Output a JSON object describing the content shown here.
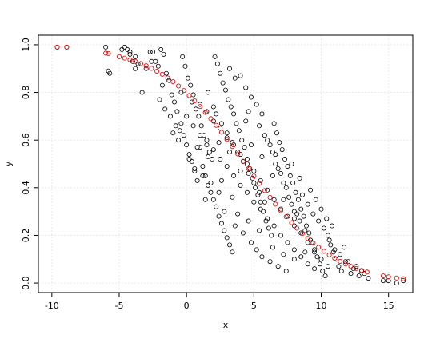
{
  "chart_data": {
    "type": "scatter",
    "title": "",
    "xlabel": "x",
    "ylabel": "y",
    "xlim": [
      -11.0,
      16.8
    ],
    "ylim": [
      -0.04,
      1.04
    ],
    "xticks": [
      -10,
      -5,
      0,
      5,
      10,
      15
    ],
    "yticks": [
      0.0,
      0.2,
      0.4,
      0.6,
      0.8,
      1.0
    ],
    "x_tick_labels": [
      "-10",
      "-5",
      "0",
      "5",
      "10",
      "15"
    ],
    "y_tick_labels": [
      "0.0",
      "0.2",
      "0.4",
      "0.6",
      "0.8",
      "1.0"
    ],
    "grid": true,
    "colors": {
      "observed": "#000000",
      "fitted": "#e01010",
      "grid": "#e6e6e6",
      "frame": "#000000"
    },
    "series": [
      {
        "marker": "open-circle",
        "color": "#000000",
        "points": [
          [
            -9.6,
            0.99
          ],
          [
            -8.9,
            0.99
          ],
          [
            -6.0,
            0.99
          ],
          [
            -5.8,
            0.89
          ],
          [
            -5.7,
            0.88
          ],
          [
            -4.8,
            0.98
          ],
          [
            -4.6,
            0.99
          ],
          [
            -4.4,
            0.98
          ],
          [
            -4.2,
            0.97
          ],
          [
            -4.0,
            0.93
          ],
          [
            -3.8,
            0.95
          ],
          [
            -3.6,
            0.92
          ],
          [
            -3.3,
            0.8
          ],
          [
            -3.0,
            0.9
          ],
          [
            -2.7,
            0.97
          ],
          [
            -2.5,
            0.97
          ],
          [
            -2.3,
            0.93
          ],
          [
            -2.1,
            0.91
          ],
          [
            -1.9,
            0.98
          ],
          [
            -1.7,
            0.96
          ],
          [
            -1.5,
            0.88
          ],
          [
            -1.3,
            0.85
          ],
          [
            -1.1,
            0.79
          ],
          [
            -0.9,
            0.76
          ],
          [
            -0.7,
            0.72
          ],
          [
            -0.5,
            0.64
          ],
          [
            -0.3,
            0.95
          ],
          [
            -0.1,
            0.91
          ],
          [
            0.1,
            0.86
          ],
          [
            0.3,
            0.83
          ],
          [
            0.5,
            0.79
          ],
          [
            0.7,
            0.73
          ],
          [
            0.9,
            0.7
          ],
          [
            1.1,
            0.66
          ],
          [
            1.3,
            0.62
          ],
          [
            1.5,
            0.58
          ],
          [
            1.7,
            0.55
          ],
          [
            1.9,
            0.52
          ],
          [
            2.1,
            0.95
          ],
          [
            2.3,
            0.92
          ],
          [
            2.5,
            0.88
          ],
          [
            2.7,
            0.84
          ],
          [
            2.9,
            0.81
          ],
          [
            3.1,
            0.77
          ],
          [
            3.3,
            0.74
          ],
          [
            3.5,
            0.71
          ],
          [
            3.7,
            0.67
          ],
          [
            3.9,
            0.64
          ],
          [
            4.1,
            0.6
          ],
          [
            4.3,
            0.57
          ],
          [
            4.5,
            0.52
          ],
          [
            4.7,
            0.48
          ],
          [
            4.9,
            0.44
          ],
          [
            5.1,
            0.4
          ],
          [
            5.3,
            0.37
          ],
          [
            5.5,
            0.34
          ],
          [
            5.7,
            0.3
          ],
          [
            5.9,
            0.26
          ],
          [
            6.1,
            0.23
          ],
          [
            6.3,
            0.2
          ],
          [
            -0.4,
            0.67
          ],
          [
            -0.2,
            0.62
          ],
          [
            0.0,
            0.58
          ],
          [
            0.2,
            0.54
          ],
          [
            0.4,
            0.51
          ],
          [
            0.6,
            0.47
          ],
          [
            0.8,
            0.43
          ],
          [
            1.0,
            0.57
          ],
          [
            1.2,
            0.49
          ],
          [
            1.4,
            0.45
          ],
          [
            1.6,
            0.41
          ],
          [
            1.8,
            0.38
          ],
          [
            2.0,
            0.35
          ],
          [
            2.2,
            0.32
          ],
          [
            2.4,
            0.28
          ],
          [
            2.6,
            0.25
          ],
          [
            2.8,
            0.22
          ],
          [
            3.0,
            0.19
          ],
          [
            3.2,
            0.16
          ],
          [
            3.4,
            0.13
          ],
          [
            6.5,
            0.67
          ],
          [
            6.7,
            0.63
          ],
          [
            6.9,
            0.59
          ],
          [
            7.1,
            0.56
          ],
          [
            7.3,
            0.52
          ],
          [
            7.5,
            0.49
          ],
          [
            7.7,
            0.45
          ],
          [
            7.9,
            0.42
          ],
          [
            8.1,
            0.38
          ],
          [
            8.3,
            0.35
          ],
          [
            8.5,
            0.31
          ],
          [
            8.7,
            0.28
          ],
          [
            8.9,
            0.24
          ],
          [
            9.1,
            0.21
          ],
          [
            9.3,
            0.17
          ],
          [
            9.5,
            0.14
          ],
          [
            9.7,
            0.11
          ],
          [
            9.9,
            0.08
          ],
          [
            10.1,
            0.05
          ],
          [
            10.3,
            0.03
          ],
          [
            10.5,
            0.2
          ],
          [
            10.7,
            0.16
          ],
          [
            10.9,
            0.13
          ],
          [
            11.1,
            0.1
          ],
          [
            11.3,
            0.07
          ],
          [
            11.5,
            0.05
          ],
          [
            11.7,
            0.15
          ],
          [
            12.0,
            0.09
          ],
          [
            12.4,
            0.06
          ],
          [
            12.8,
            0.03
          ],
          [
            13.2,
            0.04
          ],
          [
            13.5,
            0.02
          ],
          [
            14.6,
            0.01
          ],
          [
            15.0,
            0.01
          ],
          [
            15.6,
            0.0
          ],
          [
            16.1,
            0.01
          ],
          [
            4.0,
            0.87
          ],
          [
            4.4,
            0.82
          ],
          [
            4.8,
            0.78
          ],
          [
            5.2,
            0.75
          ],
          [
            5.6,
            0.71
          ],
          [
            6.0,
            0.6
          ],
          [
            6.4,
            0.55
          ],
          [
            6.8,
            0.48
          ],
          [
            7.2,
            0.42
          ],
          [
            7.6,
            0.36
          ],
          [
            8.0,
            0.3
          ],
          [
            8.4,
            0.26
          ],
          [
            8.8,
            0.22
          ],
          [
            9.2,
            0.18
          ],
          [
            2.2,
            0.71
          ],
          [
            2.6,
            0.67
          ],
          [
            3.0,
            0.63
          ],
          [
            3.4,
            0.59
          ],
          [
            3.8,
            0.55
          ],
          [
            4.2,
            0.51
          ],
          [
            4.6,
            0.46
          ],
          [
            5.0,
            0.42
          ],
          [
            5.4,
            0.38
          ],
          [
            5.8,
            0.34
          ],
          [
            1.0,
            0.75
          ],
          [
            1.5,
            0.72
          ],
          [
            2.0,
            0.68
          ],
          [
            2.5,
            0.65
          ],
          [
            3.0,
            0.61
          ],
          [
            3.5,
            0.58
          ],
          [
            4.0,
            0.54
          ],
          [
            4.5,
            0.5
          ],
          [
            5.0,
            0.47
          ],
          [
            5.5,
            0.43
          ],
          [
            6.0,
            0.39
          ],
          [
            6.5,
            0.35
          ],
          [
            7.0,
            0.31
          ],
          [
            7.5,
            0.28
          ],
          [
            8.0,
            0.24
          ],
          [
            8.5,
            0.21
          ],
          [
            9.0,
            0.17
          ],
          [
            9.5,
            0.13
          ],
          [
            10.0,
            0.1
          ],
          [
            10.5,
            0.07
          ],
          [
            0.0,
            0.7
          ],
          [
            0.5,
            0.66
          ],
          [
            1.0,
            0.62
          ],
          [
            1.5,
            0.6
          ],
          [
            2.0,
            0.56
          ],
          [
            2.5,
            0.52
          ],
          [
            3.0,
            0.49
          ],
          [
            3.5,
            0.45
          ],
          [
            4.0,
            0.41
          ],
          [
            4.5,
            0.38
          ],
          [
            5.0,
            0.34
          ],
          [
            5.5,
            0.31
          ],
          [
            6.0,
            0.27
          ],
          [
            6.5,
            0.24
          ],
          [
            7.0,
            0.2
          ],
          [
            7.5,
            0.17
          ],
          [
            8.0,
            0.14
          ],
          [
            8.5,
            0.11
          ],
          [
            9.0,
            0.08
          ],
          [
            9.5,
            0.06
          ],
          [
            3.2,
            0.9
          ],
          [
            3.6,
            0.86
          ],
          [
            4.4,
            0.68
          ],
          [
            5.8,
            0.62
          ],
          [
            6.2,
            0.58
          ],
          [
            6.6,
            0.5
          ],
          [
            7.0,
            0.46
          ],
          [
            7.4,
            0.4
          ],
          [
            7.8,
            0.33
          ],
          [
            8.2,
            0.29
          ],
          [
            -1.0,
            0.63
          ],
          [
            -0.6,
            0.6
          ],
          [
            0.2,
            0.52
          ],
          [
            0.6,
            0.48
          ],
          [
            1.2,
            0.45
          ],
          [
            1.8,
            0.42
          ],
          [
            2.4,
            0.38
          ],
          [
            2.8,
            0.3
          ],
          [
            3.6,
            0.24
          ],
          [
            4.2,
            0.21
          ],
          [
            4.8,
            0.17
          ],
          [
            5.2,
            0.14
          ],
          [
            5.6,
            0.11
          ],
          [
            6.2,
            0.09
          ],
          [
            6.8,
            0.07
          ],
          [
            7.4,
            0.05
          ],
          [
            8.6,
            0.37
          ],
          [
            9.0,
            0.33
          ],
          [
            9.4,
            0.29
          ],
          [
            9.8,
            0.26
          ],
          [
            10.2,
            0.23
          ],
          [
            10.6,
            0.18
          ],
          [
            11.0,
            0.14
          ],
          [
            11.4,
            0.12
          ],
          [
            11.8,
            0.09
          ],
          [
            12.2,
            0.04
          ],
          [
            12.6,
            0.07
          ],
          [
            13.0,
            0.05
          ],
          [
            -2.0,
            0.77
          ],
          [
            -1.6,
            0.73
          ],
          [
            -1.2,
            0.7
          ],
          [
            -0.8,
            0.66
          ],
          [
            -3.8,
            0.9
          ],
          [
            -4.2,
            0.96
          ],
          [
            -2.6,
            0.93
          ],
          [
            -1.8,
            0.83
          ],
          [
            -0.4,
            0.8
          ],
          [
            0.4,
            0.76
          ],
          [
            1.6,
            0.8
          ],
          [
            2.0,
            0.74
          ],
          [
            4.6,
            0.72
          ],
          [
            5.4,
            0.66
          ],
          [
            6.6,
            0.54
          ],
          [
            7.8,
            0.5
          ],
          [
            8.4,
            0.44
          ],
          [
            9.2,
            0.39
          ],
          [
            9.6,
            0.35
          ],
          [
            10.0,
            0.31
          ],
          [
            10.4,
            0.27
          ],
          [
            10.8,
            0.24
          ],
          [
            3.8,
            0.29
          ],
          [
            4.6,
            0.26
          ],
          [
            5.4,
            0.22
          ],
          [
            6.4,
            0.15
          ],
          [
            7.2,
            0.12
          ],
          [
            8.0,
            0.1
          ],
          [
            8.8,
            0.13
          ],
          [
            1.4,
            0.35
          ],
          [
            2.6,
            0.43
          ],
          [
            3.4,
            0.36
          ],
          [
            0.8,
            0.57
          ],
          [
            1.6,
            0.53
          ],
          [
            2.4,
            0.59
          ],
          [
            3.2,
            0.55
          ],
          [
            4.0,
            0.47
          ],
          [
            4.8,
            0.58
          ],
          [
            5.6,
            0.53
          ],
          [
            6.4,
            0.45
          ],
          [
            7.2,
            0.35
          ],
          [
            8.0,
            0.27
          ]
        ]
      },
      {
        "marker": "open-circle",
        "color": "#e01010",
        "points": [
          [
            -9.6,
            0.99
          ],
          [
            -8.9,
            0.99
          ],
          [
            -6.0,
            0.965
          ],
          [
            -5.8,
            0.963
          ],
          [
            -5.0,
            0.95
          ],
          [
            -4.6,
            0.944
          ],
          [
            -4.2,
            0.937
          ],
          [
            -3.8,
            0.93
          ],
          [
            -3.4,
            0.921
          ],
          [
            -3.0,
            0.912
          ],
          [
            -2.6,
            0.901
          ],
          [
            -2.2,
            0.889
          ],
          [
            -1.8,
            0.876
          ],
          [
            -1.4,
            0.861
          ],
          [
            -1.0,
            0.845
          ],
          [
            -0.6,
            0.827
          ],
          [
            -0.2,
            0.808
          ],
          [
            0.2,
            0.787
          ],
          [
            0.6,
            0.765
          ],
          [
            1.0,
            0.741
          ],
          [
            1.4,
            0.716
          ],
          [
            1.8,
            0.69
          ],
          [
            2.2,
            0.662
          ],
          [
            2.6,
            0.633
          ],
          [
            3.0,
            0.603
          ],
          [
            3.4,
            0.573
          ],
          [
            3.8,
            0.542
          ],
          [
            4.2,
            0.511
          ],
          [
            4.6,
            0.48
          ],
          [
            5.0,
            0.449
          ],
          [
            5.4,
            0.418
          ],
          [
            5.8,
            0.388
          ],
          [
            6.2,
            0.359
          ],
          [
            6.6,
            0.331
          ],
          [
            7.0,
            0.304
          ],
          [
            7.4,
            0.278
          ],
          [
            7.8,
            0.253
          ],
          [
            8.2,
            0.23
          ],
          [
            8.6,
            0.208
          ],
          [
            9.0,
            0.187
          ],
          [
            9.4,
            0.168
          ],
          [
            9.8,
            0.15
          ],
          [
            10.2,
            0.133
          ],
          [
            10.6,
            0.118
          ],
          [
            11.0,
            0.104
          ],
          [
            11.4,
            0.091
          ],
          [
            11.8,
            0.08
          ],
          [
            12.2,
            0.07
          ],
          [
            12.6,
            0.061
          ],
          [
            13.0,
            0.053
          ],
          [
            13.4,
            0.046
          ],
          [
            14.6,
            0.03
          ],
          [
            15.0,
            0.026
          ],
          [
            15.6,
            0.021
          ],
          [
            16.1,
            0.018
          ]
        ]
      }
    ]
  }
}
